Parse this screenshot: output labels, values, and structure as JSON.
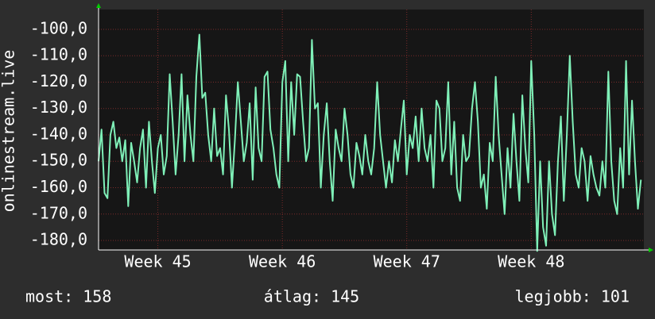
{
  "chart_data": {
    "type": "line",
    "ylabel": "onlinestream.live",
    "color": "#7ff0b8",
    "x": [
      0,
      1,
      2,
      3,
      4,
      5,
      6,
      7,
      8,
      9,
      10,
      11,
      12,
      13,
      14,
      15,
      16,
      17,
      18,
      19,
      20,
      21,
      22,
      23,
      24,
      25,
      26,
      27,
      28,
      29,
      30,
      31,
      32,
      33,
      34,
      35,
      36,
      37,
      38,
      39,
      40,
      41,
      42,
      43,
      44,
      45,
      46,
      47,
      48,
      49,
      50,
      51,
      52,
      53,
      54,
      55,
      56,
      57,
      58,
      59,
      60,
      61,
      62,
      63,
      64,
      65,
      66,
      67,
      68,
      69,
      70,
      71,
      72,
      73,
      74,
      75,
      76,
      77,
      78,
      79,
      80,
      81,
      82,
      83,
      84,
      85,
      86,
      87,
      88,
      89,
      90,
      91,
      92,
      93,
      94,
      95,
      96,
      97,
      98,
      99,
      100,
      101,
      102,
      103,
      104,
      105,
      106,
      107,
      108,
      109,
      110,
      111,
      112,
      113,
      114,
      115,
      116,
      117,
      118,
      119,
      120,
      121,
      122,
      123,
      124,
      125,
      126,
      127,
      128,
      129,
      130,
      131,
      132,
      133,
      134,
      135,
      136,
      137,
      138,
      139,
      140,
      141,
      142,
      143,
      144,
      145,
      146,
      147,
      148,
      149,
      150,
      151,
      152,
      153,
      154,
      155,
      156,
      157,
      158,
      159,
      160,
      161,
      162,
      163,
      164,
      165,
      166,
      167,
      168,
      169,
      170,
      171,
      172,
      173,
      174,
      175,
      176,
      177,
      178,
      179,
      180,
      181,
      182,
      183
    ],
    "values": [
      -150,
      -138,
      -162,
      -164,
      -140,
      -135,
      -145,
      -141,
      -150,
      -142,
      -167,
      -143,
      -150,
      -158,
      -145,
      -138,
      -160,
      -135,
      -150,
      -162,
      -145,
      -140,
      -155,
      -148,
      -117,
      -135,
      -155,
      -140,
      -117,
      -150,
      -125,
      -140,
      -150,
      -118,
      -102,
      -126,
      -124,
      -140,
      -150,
      -130,
      -148,
      -145,
      -155,
      -125,
      -138,
      -160,
      -142,
      -120,
      -135,
      -150,
      -143,
      -128,
      -157,
      -122,
      -145,
      -150,
      -118,
      -116,
      -138,
      -145,
      -155,
      -160,
      -120,
      -112,
      -150,
      -120,
      -140,
      -117,
      -118,
      -135,
      -150,
      -145,
      -104,
      -130,
      -128,
      -160,
      -140,
      -128,
      -150,
      -165,
      -138,
      -145,
      -150,
      -130,
      -140,
      -155,
      -160,
      -143,
      -148,
      -155,
      -140,
      -150,
      -155,
      -145,
      -120,
      -140,
      -150,
      -160,
      -150,
      -158,
      -142,
      -150,
      -138,
      -127,
      -155,
      -140,
      -145,
      -133,
      -150,
      -130,
      -145,
      -150,
      -140,
      -160,
      -127,
      -130,
      -150,
      -145,
      -120,
      -155,
      -135,
      -160,
      -165,
      -140,
      -150,
      -148,
      -130,
      -120,
      -135,
      -160,
      -155,
      -168,
      -143,
      -150,
      -118,
      -140,
      -155,
      -170,
      -145,
      -160,
      -132,
      -150,
      -165,
      -125,
      -145,
      -158,
      -112,
      -140,
      -184,
      -150,
      -175,
      -182,
      -150,
      -170,
      -178,
      -150,
      -133,
      -165,
      -140,
      -110,
      -135,
      -155,
      -160,
      -145,
      -150,
      -165,
      -148,
      -155,
      -160,
      -163,
      -150,
      -160,
      -116,
      -150,
      -165,
      -170,
      -145,
      -160,
      -112,
      -155,
      -127,
      -150,
      -168,
      -157
    ],
    "xlim": [
      0,
      184
    ],
    "xticks": [
      {
        "value": 20,
        "label": "Week 45"
      },
      {
        "value": 62,
        "label": "Week 46"
      },
      {
        "value": 104,
        "label": "Week 47"
      },
      {
        "value": 146,
        "label": "Week 48"
      }
    ],
    "ylim": [
      -183.6,
      -92.5
    ],
    "yticks": [
      {
        "value": -180,
        "label": "-180,0"
      },
      {
        "value": -170,
        "label": "-170,0"
      },
      {
        "value": -160,
        "label": "-160,0"
      },
      {
        "value": -150,
        "label": "-150,0"
      },
      {
        "value": -140,
        "label": "-140,0"
      },
      {
        "value": -130,
        "label": "-130,0"
      },
      {
        "value": -120,
        "label": "-120,0"
      },
      {
        "value": -110,
        "label": "-110,0"
      },
      {
        "value": -100,
        "label": "-100,0"
      }
    ],
    "grid": true,
    "footer": [
      "most: 158",
      "átlag: 145",
      "legjobb: 101"
    ]
  }
}
